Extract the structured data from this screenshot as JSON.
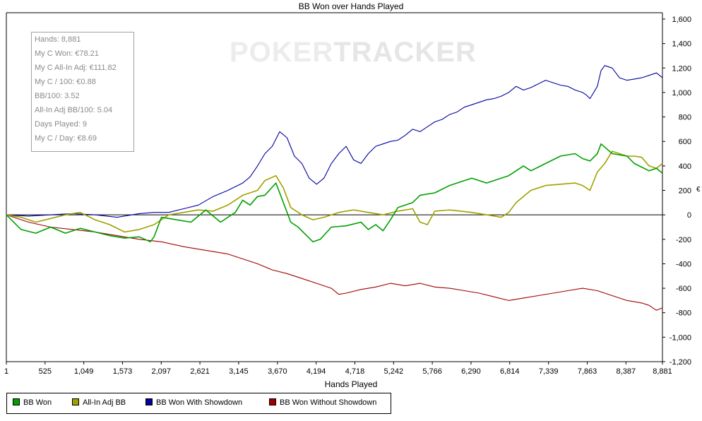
{
  "chart_data": {
    "type": "line",
    "title": "BB Won over Hands Played",
    "xlabel": "Hands Played",
    "ylabel": "",
    "xlim": [
      1,
      8881
    ],
    "ylim": [
      -1200,
      1600
    ],
    "x_ticks": [
      "1",
      "525",
      "1,049",
      "1,573",
      "2,097",
      "2,621",
      "3,145",
      "3,670",
      "4,194",
      "4,718",
      "5,242",
      "5,766",
      "6,290",
      "6,814",
      "7,339",
      "7,863",
      "8,387",
      "8,881"
    ],
    "y_ticks": [
      "1,600",
      "1,400",
      "1,200",
      "1,000",
      "800",
      "600",
      "400",
      "200",
      "0",
      "-200",
      "-400",
      "-600",
      "-800",
      "-1,000",
      "-1,200"
    ],
    "series": [
      {
        "name": "BB Won",
        "color": "#00a000",
        "x": [
          1,
          200,
          400,
          600,
          800,
          1000,
          1200,
          1400,
          1600,
          1800,
          1950,
          2000,
          2100,
          2300,
          2500,
          2700,
          2900,
          3100,
          3200,
          3300,
          3400,
          3500,
          3650,
          3750,
          3850,
          3950,
          4050,
          4150,
          4250,
          4400,
          4600,
          4800,
          4900,
          5000,
          5100,
          5200,
          5300,
          5500,
          5600,
          5800,
          6000,
          6300,
          6500,
          6600,
          6800,
          7000,
          7100,
          7300,
          7500,
          7700,
          7800,
          7900,
          8000,
          8050,
          8200,
          8400,
          8500,
          8600,
          8700,
          8800,
          8881
        ],
        "y": [
          0,
          -120,
          -150,
          -100,
          -150,
          -110,
          -140,
          -170,
          -190,
          -180,
          -220,
          -180,
          -20,
          -40,
          -60,
          40,
          -60,
          20,
          120,
          80,
          150,
          160,
          260,
          100,
          -60,
          -100,
          -160,
          -220,
          -200,
          -100,
          -90,
          -60,
          -120,
          -80,
          -130,
          -40,
          60,
          100,
          160,
          180,
          240,
          300,
          260,
          280,
          320,
          400,
          360,
          420,
          480,
          500,
          460,
          440,
          500,
          580,
          500,
          480,
          420,
          390,
          360,
          380,
          340
        ]
      },
      {
        "name": "All-In Adj BB",
        "color": "#a0a000",
        "x": [
          1,
          200,
          400,
          600,
          800,
          1000,
          1200,
          1400,
          1600,
          1800,
          2000,
          2200,
          2400,
          2600,
          2800,
          3000,
          3200,
          3400,
          3500,
          3650,
          3750,
          3850,
          4000,
          4150,
          4300,
          4500,
          4700,
          4900,
          5100,
          5300,
          5500,
          5600,
          5700,
          5800,
          6000,
          6300,
          6500,
          6700,
          6800,
          6900,
          7100,
          7300,
          7500,
          7700,
          7800,
          7900,
          8000,
          8100,
          8200,
          8400,
          8500,
          8600,
          8700,
          8800,
          8881
        ],
        "y": [
          0,
          -20,
          -60,
          -30,
          0,
          20,
          -40,
          -80,
          -140,
          -120,
          -80,
          0,
          20,
          40,
          30,
          80,
          160,
          200,
          280,
          320,
          220,
          60,
          0,
          -40,
          -20,
          20,
          40,
          20,
          0,
          30,
          50,
          -60,
          -80,
          30,
          40,
          20,
          0,
          -20,
          20,
          100,
          200,
          240,
          250,
          260,
          240,
          200,
          350,
          420,
          520,
          480,
          480,
          470,
          400,
          380,
          420
        ]
      },
      {
        "name": "BB Won With Showdown",
        "color": "#0000a0",
        "x": [
          1,
          300,
          600,
          900,
          1200,
          1500,
          1800,
          2000,
          2200,
          2400,
          2600,
          2800,
          3000,
          3100,
          3200,
          3300,
          3400,
          3500,
          3600,
          3700,
          3800,
          3900,
          4000,
          4100,
          4200,
          4300,
          4400,
          4500,
          4600,
          4700,
          4800,
          4900,
          5000,
          5100,
          5200,
          5300,
          5400,
          5500,
          5600,
          5700,
          5800,
          5900,
          6000,
          6100,
          6200,
          6300,
          6400,
          6500,
          6600,
          6700,
          6800,
          6900,
          7000,
          7100,
          7200,
          7300,
          7400,
          7500,
          7600,
          7700,
          7800,
          7850,
          7900,
          8000,
          8050,
          8100,
          8200,
          8300,
          8400,
          8500,
          8600,
          8700,
          8800,
          8881
        ],
        "y": [
          0,
          -10,
          0,
          10,
          0,
          -20,
          10,
          20,
          20,
          50,
          80,
          150,
          200,
          230,
          260,
          310,
          400,
          500,
          560,
          680,
          630,
          480,
          420,
          300,
          250,
          300,
          420,
          500,
          560,
          450,
          420,
          500,
          560,
          580,
          600,
          610,
          650,
          700,
          680,
          720,
          760,
          780,
          820,
          840,
          880,
          900,
          920,
          940,
          950,
          970,
          1000,
          1050,
          1020,
          1040,
          1070,
          1100,
          1080,
          1060,
          1050,
          1020,
          1000,
          980,
          950,
          1050,
          1180,
          1220,
          1200,
          1120,
          1100,
          1110,
          1120,
          1140,
          1160,
          1120
        ]
      },
      {
        "name": "BB Won Without Showdown",
        "color": "#a00000",
        "x": [
          1,
          300,
          600,
          900,
          1200,
          1500,
          1800,
          2100,
          2400,
          2700,
          3000,
          3200,
          3400,
          3600,
          3800,
          4000,
          4200,
          4400,
          4500,
          4600,
          4800,
          5000,
          5200,
          5400,
          5600,
          5800,
          6000,
          6200,
          6400,
          6600,
          6800,
          7000,
          7200,
          7400,
          7600,
          7800,
          8000,
          8200,
          8400,
          8600,
          8700,
          8800,
          8881
        ],
        "y": [
          0,
          -60,
          -100,
          -120,
          -140,
          -170,
          -200,
          -220,
          -260,
          -290,
          -320,
          -360,
          -400,
          -450,
          -480,
          -520,
          -560,
          -600,
          -650,
          -640,
          -610,
          -590,
          -560,
          -580,
          -560,
          -590,
          -600,
          -620,
          -640,
          -670,
          -700,
          -680,
          -660,
          -640,
          -620,
          -600,
          -620,
          -660,
          -700,
          -720,
          -740,
          -780,
          -760
        ]
      }
    ],
    "zero_line": true,
    "legend_placement": "bottom-left",
    "grid": false
  },
  "stats": [
    "Hands: 8,881",
    "My C Won: €78.21",
    "My C All-In Adj: €111.82",
    "My C / 100: €0.88",
    "BB/100: 3.52",
    "All-In Adj BB/100: 5.04",
    "Days Played: 9",
    "My C / Day: €8.69"
  ],
  "watermark": {
    "part_a": "POKER",
    "part_b": "TRACKER"
  },
  "right_axis_mark": "€"
}
